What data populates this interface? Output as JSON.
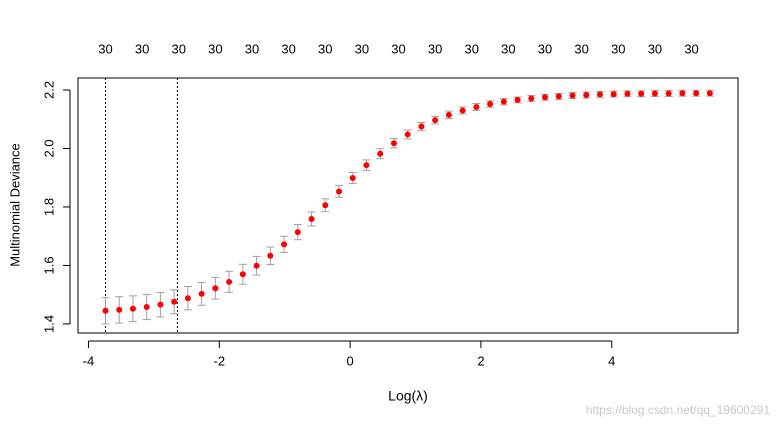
{
  "chart_data": {
    "type": "scatter",
    "x_label": "Log(λ)",
    "y_label": "Multinomial Deviance",
    "x": [
      -3.74,
      -3.53,
      -3.32,
      -3.11,
      -2.9,
      -2.69,
      -2.48,
      -2.27,
      -2.06,
      -1.85,
      -1.64,
      -1.43,
      -1.22,
      -1.01,
      -0.8,
      -0.59,
      -0.38,
      -0.17,
      0.04,
      0.25,
      0.46,
      0.67,
      0.88,
      1.09,
      1.3,
      1.51,
      1.72,
      1.93,
      2.14,
      2.35,
      2.56,
      2.77,
      2.98,
      3.19,
      3.4,
      3.61,
      3.82,
      4.03,
      4.24,
      4.45,
      4.66,
      4.87,
      5.08,
      5.29,
      5.5
    ],
    "values": [
      1.445,
      1.448,
      1.452,
      1.458,
      1.466,
      1.476,
      1.488,
      1.503,
      1.522,
      1.544,
      1.57,
      1.599,
      1.633,
      1.672,
      1.714,
      1.759,
      1.806,
      1.853,
      1.899,
      1.943,
      1.982,
      2.018,
      2.048,
      2.075,
      2.097,
      2.115,
      2.13,
      2.142,
      2.152,
      2.16,
      2.166,
      2.171,
      2.175,
      2.178,
      2.181,
      2.183,
      2.185,
      2.186,
      2.187,
      2.187,
      2.188,
      2.188,
      2.189,
      2.189,
      2.189
    ],
    "errors": [
      0.045,
      0.045,
      0.044,
      0.043,
      0.042,
      0.041,
      0.04,
      0.039,
      0.037,
      0.036,
      0.034,
      0.032,
      0.03,
      0.028,
      0.026,
      0.024,
      0.022,
      0.02,
      0.019,
      0.018,
      0.017,
      0.016,
      0.015,
      0.014,
      0.013,
      0.013,
      0.012,
      0.012,
      0.011,
      0.011,
      0.01,
      0.01,
      0.01,
      0.01,
      0.01,
      0.01,
      0.01,
      0.01,
      0.01,
      0.01,
      0.01,
      0.01,
      0.01,
      0.01,
      0.01
    ],
    "color": "#ff0000",
    "error_color": "#a0a0a0",
    "vlines": [
      -3.74,
      -2.64
    ],
    "top_labels": {
      "x": [
        -3.74,
        -3.18,
        -2.62,
        -2.06,
        -1.5,
        -0.94,
        -0.38,
        0.18,
        0.74,
        1.3,
        1.86,
        2.42,
        2.98,
        3.54,
        4.1,
        4.66,
        5.22
      ],
      "labels": [
        "30",
        "30",
        "30",
        "30",
        "30",
        "30",
        "30",
        "30",
        "30",
        "30",
        "30",
        "30",
        "30",
        "30",
        "30",
        "30",
        "30"
      ]
    },
    "xlim": [
      -4.16,
      5.93
    ],
    "ylim": [
      1.369,
      2.241
    ],
    "xticks": [
      -4,
      -2,
      0,
      2,
      4
    ],
    "yticks": [
      1.4,
      1.6,
      1.8,
      {
        "value": 2,
        "label": "2.0"
      },
      2.2
    ]
  },
  "watermark": "https://blog.csdn.net/qq_19600291"
}
